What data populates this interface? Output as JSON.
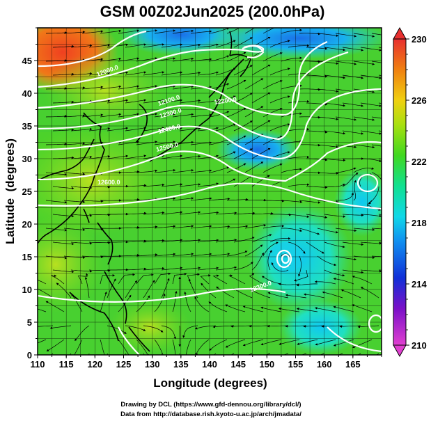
{
  "chart_data": {
    "type": "heatmap",
    "title": "GSM 00Z02Jun2025 (200.0hPa)",
    "xlabel": "Longitude (degrees)",
    "ylabel": "Latitude  (degrees)",
    "xlim": [
      110,
      170
    ],
    "ylim": [
      0,
      50
    ],
    "xticks": [
      "110",
      "115",
      "120",
      "125",
      "130",
      "135",
      "140",
      "145",
      "150",
      "155",
      "160",
      "165"
    ],
    "yticks": [
      "0",
      "5",
      "10",
      "15",
      "20",
      "25",
      "30",
      "35",
      "40",
      "45"
    ],
    "colorbar": {
      "range": [
        210,
        230
      ],
      "ticks": [
        "210",
        "214",
        "218",
        "222",
        "226",
        "230"
      ]
    },
    "contour_labels": [
      "12000.0",
      "12100.0",
      "12200.0",
      "12300.0",
      "12400.0",
      "12500.0",
      "12600.0",
      "12300.0"
    ],
    "temperature_field_notes": "shaded temperature (K) with geopotential height contours and streamlines",
    "credits": [
      "Drawing by DCL (https://www.gfd-dennou.org/library/dcl/)",
      "Data from http://database.rish.kyoto-u.ac.jp/arch/jmadata/"
    ]
  }
}
